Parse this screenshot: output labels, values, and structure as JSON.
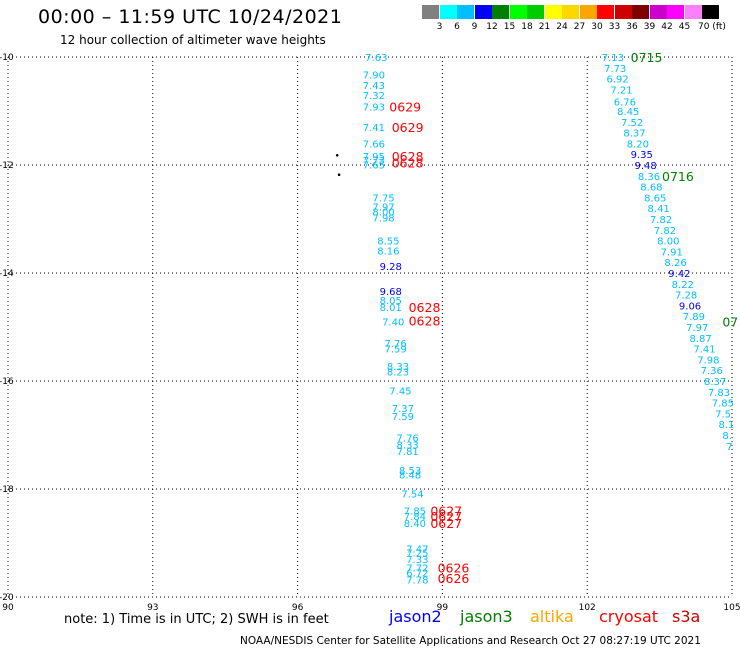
{
  "header": {
    "title": "00:00 – 11:59 UTC 10/24/2021",
    "subtitle": "12 hour collection of altimeter wave heights"
  },
  "colorbar": {
    "colors": [
      "#808080",
      "#00ffff",
      "#00bfff",
      "#0000ff",
      "#008000",
      "#00ff00",
      "#00cc00",
      "#ffff00",
      "#ffd700",
      "#ffa500",
      "#ff0000",
      "#cc0000",
      "#800000",
      "#cc00cc",
      "#ff00ff",
      "#ff80ff",
      "#000000"
    ],
    "labels": [
      "3",
      "6",
      "9",
      "12",
      "15",
      "18",
      "21",
      "24",
      "27",
      "30",
      "33",
      "36",
      "39",
      "42",
      "45",
      "70 (ft)"
    ]
  },
  "map": {
    "lon_range": [
      90,
      105
    ],
    "lat_range": [
      -20,
      -10
    ],
    "lon_ticks": [
      "90",
      "93",
      "96",
      "99",
      "102",
      "105"
    ],
    "lat_ticks": [
      "-10",
      "-12",
      "-14",
      "-16",
      "-18",
      "-20"
    ],
    "grid": "dotted",
    "observations": [
      {
        "v": "7.63",
        "lon": 97.4,
        "lat": -10.0,
        "c": "#00bfff"
      },
      {
        "v": "7.90",
        "lon": 97.35,
        "lat": -10.32,
        "c": "#00bfff"
      },
      {
        "v": "7.43",
        "lon": 97.35,
        "lat": -10.52,
        "c": "#00bfff"
      },
      {
        "v": "7.32",
        "lon": 97.35,
        "lat": -10.7,
        "c": "#00bfff"
      },
      {
        "v": "7.93",
        "lon": 97.35,
        "lat": -10.92,
        "c": "#00bfff"
      },
      {
        "v": "7.41",
        "lon": 97.35,
        "lat": -11.3,
        "c": "#00bfff"
      },
      {
        "v": "7.66",
        "lon": 97.35,
        "lat": -11.6,
        "c": "#00bfff"
      },
      {
        "v": "7.95",
        "lon": 97.35,
        "lat": -11.83,
        "c": "#00bfff"
      },
      {
        "v": "7.73",
        "lon": 97.35,
        "lat": -11.91,
        "c": "#00bfff"
      },
      {
        "v": "7.65",
        "lon": 97.35,
        "lat": -11.99,
        "c": "#00bfff"
      },
      {
        "v": "7.75",
        "lon": 97.55,
        "lat": -12.6,
        "c": "#00bfff"
      },
      {
        "v": "7.97",
        "lon": 97.55,
        "lat": -12.77,
        "c": "#00bfff"
      },
      {
        "v": "8.00",
        "lon": 97.55,
        "lat": -12.86,
        "c": "#00bfff"
      },
      {
        "v": "7.98",
        "lon": 97.55,
        "lat": -12.97,
        "c": "#00bfff"
      },
      {
        "v": "8.55",
        "lon": 97.65,
        "lat": -13.4,
        "c": "#00bfff"
      },
      {
        "v": "8.16",
        "lon": 97.65,
        "lat": -13.58,
        "c": "#00bfff"
      },
      {
        "v": "9.28",
        "lon": 97.7,
        "lat": -13.87,
        "c": "#0000ff"
      },
      {
        "v": "9.68",
        "lon": 97.7,
        "lat": -14.33,
        "c": "#0000ff"
      },
      {
        "v": "8.05",
        "lon": 97.7,
        "lat": -14.5,
        "c": "#00bfff"
      },
      {
        "v": "8.01",
        "lon": 97.7,
        "lat": -14.63,
        "c": "#00bfff"
      },
      {
        "v": "7.40",
        "lon": 97.75,
        "lat": -14.9,
        "c": "#00bfff"
      },
      {
        "v": "7.76",
        "lon": 97.8,
        "lat": -15.3,
        "c": "#00bfff"
      },
      {
        "v": "7.59",
        "lon": 97.8,
        "lat": -15.4,
        "c": "#00bfff"
      },
      {
        "v": "8.33",
        "lon": 97.85,
        "lat": -15.72,
        "c": "#00bfff"
      },
      {
        "v": "8.23",
        "lon": 97.85,
        "lat": -15.82,
        "c": "#00bfff"
      },
      {
        "v": "7.45",
        "lon": 97.9,
        "lat": -16.18,
        "c": "#00bfff"
      },
      {
        "v": "7.37",
        "lon": 97.95,
        "lat": -16.5,
        "c": "#00bfff"
      },
      {
        "v": "7.59",
        "lon": 97.95,
        "lat": -16.65,
        "c": "#00bfff"
      },
      {
        "v": "7.76",
        "lon": 98.05,
        "lat": -17.05,
        "c": "#00bfff"
      },
      {
        "v": "8.33",
        "lon": 98.05,
        "lat": -17.18,
        "c": "#00bfff"
      },
      {
        "v": "7.81",
        "lon": 98.05,
        "lat": -17.3,
        "c": "#00bfff"
      },
      {
        "v": "8.53",
        "lon": 98.1,
        "lat": -17.65,
        "c": "#00bfff"
      },
      {
        "v": "8.48",
        "lon": 98.1,
        "lat": -17.73,
        "c": "#00bfff"
      },
      {
        "v": "7.54",
        "lon": 98.15,
        "lat": -18.08,
        "c": "#00bfff"
      },
      {
        "v": "7.85",
        "lon": 98.2,
        "lat": -18.4,
        "c": "#00bfff"
      },
      {
        "v": "7.84",
        "lon": 98.2,
        "lat": -18.5,
        "c": "#00bfff"
      },
      {
        "v": "8.40",
        "lon": 98.2,
        "lat": -18.63,
        "c": "#00bfff"
      },
      {
        "v": "7.47",
        "lon": 98.25,
        "lat": -19.1,
        "c": "#00bfff"
      },
      {
        "v": "7.25",
        "lon": 98.25,
        "lat": -19.18,
        "c": "#00bfff"
      },
      {
        "v": "7.33",
        "lon": 98.25,
        "lat": -19.3,
        "c": "#00bfff"
      },
      {
        "v": "7.72",
        "lon": 98.25,
        "lat": -19.45,
        "c": "#00bfff"
      },
      {
        "v": "6.72",
        "lon": 98.25,
        "lat": -19.55,
        "c": "#00bfff"
      },
      {
        "v": "7.78",
        "lon": 98.25,
        "lat": -19.68,
        "c": "#00bfff"
      },
      {
        "v": "7.13",
        "lon": 102.3,
        "lat": -10.0,
        "c": "#00bfff"
      },
      {
        "v": "7.73",
        "lon": 102.35,
        "lat": -10.2,
        "c": "#00bfff"
      },
      {
        "v": "6.92",
        "lon": 102.4,
        "lat": -10.4,
        "c": "#00bfff"
      },
      {
        "v": "7.21",
        "lon": 102.48,
        "lat": -10.6,
        "c": "#00bfff"
      },
      {
        "v": "6.76",
        "lon": 102.55,
        "lat": -10.82,
        "c": "#00bfff"
      },
      {
        "v": "8.45",
        "lon": 102.62,
        "lat": -11.0,
        "c": "#00bfff"
      },
      {
        "v": "7.52",
        "lon": 102.7,
        "lat": -11.2,
        "c": "#00bfff"
      },
      {
        "v": "8.37",
        "lon": 102.75,
        "lat": -11.4,
        "c": "#00bfff"
      },
      {
        "v": "8.20",
        "lon": 102.82,
        "lat": -11.6,
        "c": "#00bfff"
      },
      {
        "v": "9.35",
        "lon": 102.9,
        "lat": -11.8,
        "c": "#0000ff"
      },
      {
        "v": "9.48",
        "lon": 102.98,
        "lat": -12.0,
        "c": "#0000ff"
      },
      {
        "v": "8.36",
        "lon": 103.05,
        "lat": -12.2,
        "c": "#00bfff"
      },
      {
        "v": "8.68",
        "lon": 103.1,
        "lat": -12.4,
        "c": "#00bfff"
      },
      {
        "v": "8.65",
        "lon": 103.18,
        "lat": -12.6,
        "c": "#00bfff"
      },
      {
        "v": "8.41",
        "lon": 103.25,
        "lat": -12.8,
        "c": "#00bfff"
      },
      {
        "v": "7.82",
        "lon": 103.3,
        "lat": -13.0,
        "c": "#00bfff"
      },
      {
        "v": "7.82",
        "lon": 103.38,
        "lat": -13.2,
        "c": "#00bfff"
      },
      {
        "v": "8.00",
        "lon": 103.45,
        "lat": -13.4,
        "c": "#00bfff"
      },
      {
        "v": "7.91",
        "lon": 103.52,
        "lat": -13.6,
        "c": "#00bfff"
      },
      {
        "v": "8.26",
        "lon": 103.6,
        "lat": -13.8,
        "c": "#00bfff"
      },
      {
        "v": "9.42",
        "lon": 103.68,
        "lat": -14.0,
        "c": "#0000ff"
      },
      {
        "v": "8.22",
        "lon": 103.75,
        "lat": -14.2,
        "c": "#00bfff"
      },
      {
        "v": "7.28",
        "lon": 103.82,
        "lat": -14.4,
        "c": "#00bfff"
      },
      {
        "v": "9.06",
        "lon": 103.9,
        "lat": -14.6,
        "c": "#0000ff"
      },
      {
        "v": "7.89",
        "lon": 103.98,
        "lat": -14.8,
        "c": "#00bfff"
      },
      {
        "v": "7.97",
        "lon": 104.05,
        "lat": -15.0,
        "c": "#00bfff"
      },
      {
        "v": "8.87",
        "lon": 104.12,
        "lat": -15.2,
        "c": "#00bfff"
      },
      {
        "v": "7.41",
        "lon": 104.2,
        "lat": -15.4,
        "c": "#00bfff"
      },
      {
        "v": "7.98",
        "lon": 104.28,
        "lat": -15.6,
        "c": "#00bfff"
      },
      {
        "v": "7.36",
        "lon": 104.35,
        "lat": -15.8,
        "c": "#00bfff"
      },
      {
        "v": "8.37",
        "lon": 104.42,
        "lat": -16.0,
        "c": "#00bfff"
      },
      {
        "v": "7.83",
        "lon": 104.5,
        "lat": -16.2,
        "c": "#00bfff"
      },
      {
        "v": "7.85",
        "lon": 104.58,
        "lat": -16.4,
        "c": "#00bfff"
      },
      {
        "v": "7.5",
        "lon": 104.65,
        "lat": -16.6,
        "c": "#00bfff"
      },
      {
        "v": "8.1",
        "lon": 104.72,
        "lat": -16.8,
        "c": "#00bfff"
      },
      {
        "v": "8.",
        "lon": 104.8,
        "lat": -17.0,
        "c": "#00bfff"
      },
      {
        "v": "7",
        "lon": 104.88,
        "lat": -17.2,
        "c": "#00bfff"
      }
    ],
    "time_labels": [
      {
        "t": "0629",
        "lon": 97.9,
        "lat": -10.92,
        "c": "#ff0000"
      },
      {
        "t": "0629",
        "lon": 97.95,
        "lat": -11.3,
        "c": "#ff0000"
      },
      {
        "t": "0628",
        "lon": 97.95,
        "lat": -11.83,
        "c": "#ff0000"
      },
      {
        "t": "0628",
        "lon": 97.95,
        "lat": -11.95,
        "c": "#ff0000"
      },
      {
        "t": "0628",
        "lon": 98.3,
        "lat": -14.63,
        "c": "#ff0000"
      },
      {
        "t": "0628",
        "lon": 98.3,
        "lat": -14.88,
        "c": "#ff0000"
      },
      {
        "t": "0627",
        "lon": 98.75,
        "lat": -18.4,
        "c": "#ff0000"
      },
      {
        "t": "0627",
        "lon": 98.75,
        "lat": -18.5,
        "c": "#ff0000"
      },
      {
        "t": "0627",
        "lon": 98.75,
        "lat": -18.63,
        "c": "#ff0000"
      },
      {
        "t": "0626",
        "lon": 98.9,
        "lat": -19.45,
        "c": "#ff0000"
      },
      {
        "t": "0626",
        "lon": 98.9,
        "lat": -19.65,
        "c": "#ff0000"
      },
      {
        "t": "0715",
        "lon": 102.9,
        "lat": -10.0,
        "c": "#008000"
      },
      {
        "t": "0716",
        "lon": 103.55,
        "lat": -12.2,
        "c": "#008000"
      },
      {
        "t": "07",
        "lon": 104.8,
        "lat": -14.9,
        "c": "#008000"
      }
    ],
    "islands": [
      {
        "lon": 96.82,
        "lat": -11.82
      },
      {
        "lon": 96.86,
        "lat": -12.18
      }
    ]
  },
  "note": "note: 1) Time is in UTC; 2) SWH is in feet",
  "satellites": [
    {
      "name": "jason2",
      "color": "#0000ff"
    },
    {
      "name": "jason3",
      "color": "#008000"
    },
    {
      "name": "altika",
      "color": "#ffa500"
    },
    {
      "name": "cryosat",
      "color": "#ff0000"
    },
    {
      "name": "s3a",
      "color": "#cc0000"
    }
  ],
  "footer": "NOAA/NESDIS Center for Satellite Applications and Research   Oct 27 08:27:19 UTC 2021"
}
